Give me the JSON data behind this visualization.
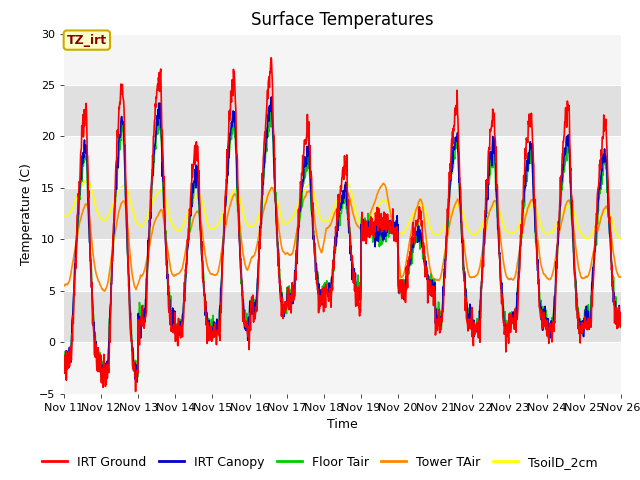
{
  "title": "Surface Temperatures",
  "xlabel": "Time",
  "ylabel": "Temperature (C)",
  "ylim": [
    -5,
    30
  ],
  "xlim": [
    0,
    15
  ],
  "xtick_labels": [
    "Nov 11",
    "Nov 12",
    "Nov 13",
    "Nov 14",
    "Nov 15",
    "Nov 16",
    "Nov 17",
    "Nov 18",
    "Nov 19",
    "Nov 20",
    "Nov 21",
    "Nov 22",
    "Nov 23",
    "Nov 24",
    "Nov 25",
    "Nov 26"
  ],
  "series_colors": {
    "IRT Ground": "#ff0000",
    "IRT Canopy": "#0000cc",
    "Floor Tair": "#00cc00",
    "Tower TAir": "#ff8800",
    "TsoilD_2cm": "#ffff00"
  },
  "bg_color": "#e8e8e8",
  "fig_bg": "#ffffff",
  "label_box_facecolor": "#ffffcc",
  "label_box_edgecolor": "#ccaa00",
  "label_text": "TZ_irt",
  "label_text_color": "#880000",
  "grid_color": "#ffffff",
  "title_fontsize": 12,
  "axis_fontsize": 9,
  "tick_fontsize": 8,
  "legend_fontsize": 9,
  "band_color_light": "#f0f0f0",
  "band_color_dark": "#dcdcdc"
}
